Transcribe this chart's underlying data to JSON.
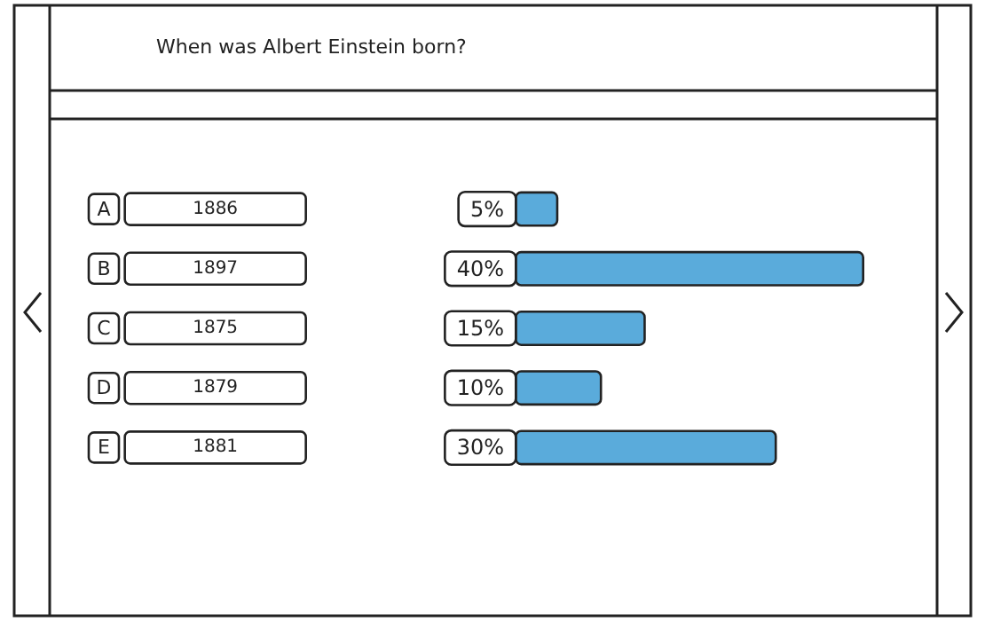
{
  "chart_data": {
    "type": "bar",
    "orientation": "horizontal",
    "title": "When was Albert Einstein born?",
    "categories": [
      "A 1886",
      "B 1897",
      "C 1875",
      "D 1879",
      "E 1881"
    ],
    "values": [
      5,
      40,
      15,
      10,
      30
    ],
    "value_labels": [
      "5%",
      "40%",
      "15%",
      "10%",
      "30%"
    ],
    "color": "#5aabdb"
  }
}
